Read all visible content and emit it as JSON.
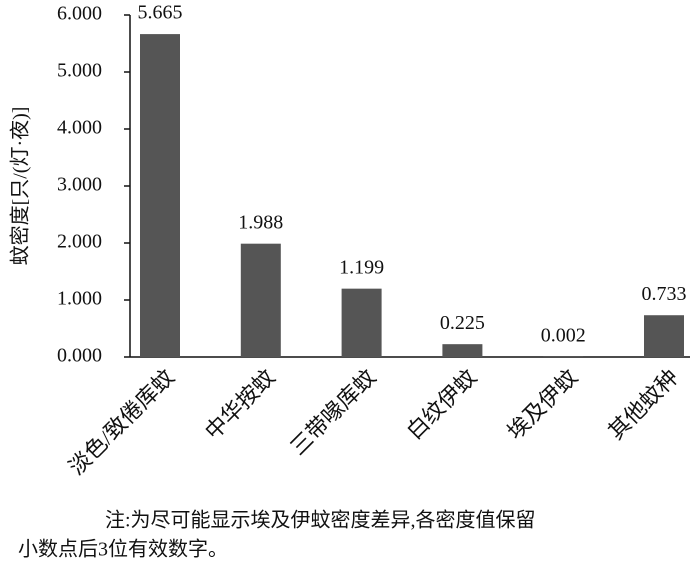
{
  "chart_data": {
    "type": "bar",
    "y_label": "蚊密度[只/(灯·夜)]",
    "categories": [
      "淡色/致倦库蚊",
      "中华按蚊",
      "三带喙库蚊",
      "白纹伊蚊",
      "埃及伊蚊",
      "其他蚊种"
    ],
    "values": [
      5.665,
      1.988,
      1.199,
      0.225,
      0.002,
      0.733
    ],
    "color": "#555555",
    "ylim": [
      0,
      6
    ],
    "yticks": [
      {
        "value": 0,
        "label": "0.000"
      },
      {
        "value": 1,
        "label": "1.000"
      },
      {
        "value": 2,
        "label": "2.000"
      },
      {
        "value": 3,
        "label": "3.000"
      },
      {
        "value": 4,
        "label": "4.000"
      },
      {
        "value": 5,
        "label": "5.000"
      },
      {
        "value": 6,
        "label": "6.000"
      }
    ],
    "grid": false,
    "note": [
      "注:为尽可能显示埃及伊蚊密度差异,各密度值保留",
      "小数点后3位有效数字。"
    ]
  }
}
